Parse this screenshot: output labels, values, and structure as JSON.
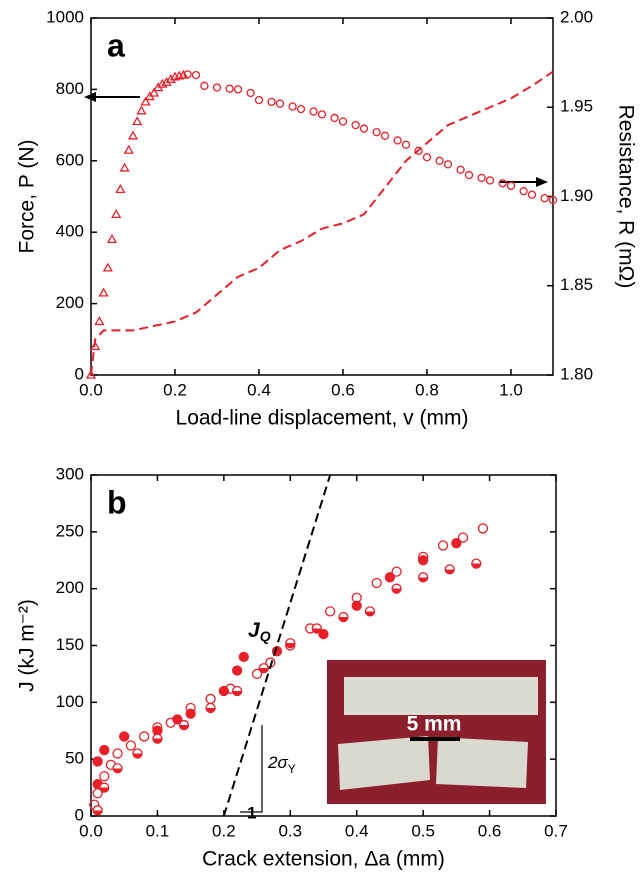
{
  "chart_data": [
    {
      "type": "line",
      "panel_label": "a",
      "xlabel": "Load-line displacement, v (mm)",
      "ylabel": "Force, P (N)",
      "y2label": "Resistance, R (mΩ)",
      "xlim": [
        0,
        1.1
      ],
      "ylim": [
        0,
        1000
      ],
      "y2lim": [
        1.8,
        2.0
      ],
      "xticks": [
        {
          "value": 0,
          "label": "0.0"
        },
        0.2,
        0.4,
        0.6,
        0.8,
        {
          "value": 1,
          "label": "1.0"
        }
      ],
      "yticks": [
        0,
        200,
        400,
        600,
        800,
        1000
      ],
      "y2ticks": [
        {
          "value": 1.8,
          "label": "1.80"
        },
        1.85,
        {
          "value": 1.9,
          "label": "1.90"
        },
        1.95,
        {
          "value": 2,
          "label": "2.00"
        }
      ],
      "series": [
        {
          "color": "#e8202a",
          "marker": "triangle",
          "x": [
            0,
            0.01,
            0.02,
            0.03,
            0.04,
            0.05,
            0.06,
            0.07,
            0.08,
            0.09,
            0.1,
            0.11,
            0.12,
            0.13,
            0.14,
            0.15,
            0.16,
            0.17,
            0.18,
            0.19,
            0.2,
            0.21,
            0.22
          ],
          "values": [
            0,
            80,
            150,
            230,
            300,
            380,
            450,
            520,
            580,
            630,
            670,
            710,
            740,
            765,
            780,
            790,
            805,
            815,
            820,
            828,
            835,
            838,
            840
          ]
        },
        {
          "color": "#e8202a",
          "marker": "circle",
          "x": [
            0.23,
            0.25,
            0.27,
            0.3,
            0.33,
            0.35,
            0.38,
            0.4,
            0.43,
            0.45,
            0.48,
            0.5,
            0.53,
            0.55,
            0.58,
            0.6,
            0.63,
            0.65,
            0.68,
            0.7,
            0.73,
            0.75,
            0.78,
            0.8,
            0.83,
            0.85,
            0.88,
            0.9,
            0.93,
            0.95,
            0.98,
            1.0,
            1.03,
            1.05,
            1.08,
            1.1
          ],
          "values": [
            842,
            840,
            810,
            805,
            802,
            800,
            790,
            770,
            765,
            760,
            752,
            745,
            738,
            730,
            720,
            710,
            700,
            690,
            680,
            670,
            657,
            645,
            628,
            610,
            600,
            590,
            575,
            560,
            552,
            545,
            537,
            530,
            515,
            505,
            495,
            490
          ]
        },
        {
          "color": "#e8202a",
          "type": "line",
          "axis": "y2",
          "x": [
            0,
            0.01,
            0.03,
            0.1,
            0.2,
            0.25,
            0.3,
            0.35,
            0.4,
            0.45,
            0.5,
            0.55,
            0.6,
            0.65,
            0.7,
            0.75,
            0.8,
            0.85,
            0.9,
            0.95,
            1.0,
            1.05,
            1.1
          ],
          "values": [
            1.8,
            1.82,
            1.825,
            1.825,
            1.83,
            1.835,
            1.845,
            1.855,
            1.86,
            1.87,
            1.875,
            1.882,
            1.885,
            1.89,
            1.905,
            1.92,
            1.93,
            1.94,
            1.945,
            1.95,
            1.955,
            1.962,
            1.97
          ]
        }
      ]
    },
    {
      "type": "scatter",
      "panel_label": "b",
      "xlabel": "Crack extension, Δa (mm)",
      "ylabel": "J (kJ m⁻²)",
      "xlim": [
        0,
        0.7
      ],
      "ylim": [
        0,
        300
      ],
      "xticks": [
        {
          "value": 0,
          "label": "0.0"
        },
        0.1,
        0.2,
        0.3,
        0.4,
        0.5,
        0.6,
        0.7
      ],
      "yticks": [
        0,
        50,
        100,
        150,
        200,
        250,
        300
      ],
      "annotations": [
        "J",
        "Q",
        "2σ",
        "Y",
        "1",
        "5 mm"
      ],
      "series": [
        {
          "color": "#e8202a",
          "marker": "filled",
          "x": [
            0.01,
            0.02,
            0.01,
            0.05,
            0.1,
            0.13,
            0.15,
            0.2,
            0.22,
            0.23,
            0.28,
            0.35,
            0.4,
            0.45,
            0.5,
            0.55
          ],
          "values": [
            48,
            58,
            28,
            70,
            75,
            85,
            90,
            110,
            128,
            140,
            145,
            160,
            185,
            210,
            225,
            240
          ]
        },
        {
          "color": "#e8202a",
          "marker": "circle",
          "x": [
            0.005,
            0.01,
            0.02,
            0.03,
            0.04,
            0.06,
            0.08,
            0.1,
            0.12,
            0.15,
            0.18,
            0.21,
            0.25,
            0.27,
            0.3,
            0.33,
            0.36,
            0.4,
            0.43,
            0.46,
            0.5,
            0.53,
            0.56,
            0.59
          ],
          "values": [
            10,
            20,
            35,
            45,
            55,
            62,
            70,
            78,
            82,
            95,
            103,
            112,
            125,
            135,
            150,
            165,
            180,
            192,
            205,
            215,
            228,
            238,
            245,
            253
          ]
        },
        {
          "color": "#e8202a",
          "marker": "half",
          "x": [
            0.01,
            0.02,
            0.04,
            0.07,
            0.1,
            0.14,
            0.18,
            0.22,
            0.26,
            0.3,
            0.34,
            0.38,
            0.42,
            0.46,
            0.5,
            0.54,
            0.58
          ],
          "values": [
            5,
            25,
            42,
            55,
            68,
            80,
            95,
            110,
            130,
            152,
            165,
            175,
            180,
            200,
            210,
            217,
            222
          ]
        },
        {
          "color": "#000000",
          "type": "line",
          "x": [
            0.2,
            0.36
          ],
          "values": [
            0,
            300
          ]
        }
      ]
    }
  ]
}
